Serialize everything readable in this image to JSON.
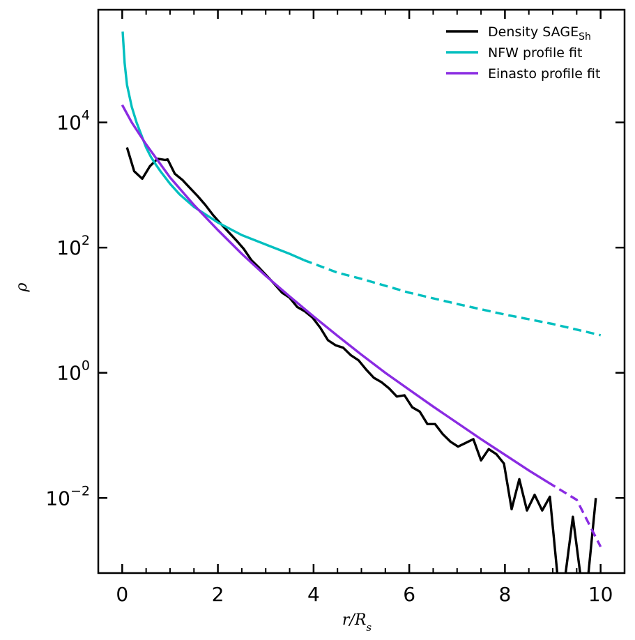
{
  "chart_data": {
    "type": "line",
    "xlabel": "r/R",
    "xlabel_sub": "s",
    "ylabel": "ρ",
    "xlim": [
      -0.5,
      10.5
    ],
    "ylim_log10": [
      -3.2,
      5.8
    ],
    "y_scale": "log",
    "x_ticks": [
      0,
      2,
      4,
      6,
      8,
      10
    ],
    "x_tick_labels": [
      "0",
      "2",
      "4",
      "6",
      "8",
      "10"
    ],
    "y_ticks_log10": [
      4,
      2,
      0,
      -2
    ],
    "y_tick_labels": [
      {
        "base": "10",
        "exp": "4"
      },
      {
        "base": "10",
        "exp": "2"
      },
      {
        "base": "10",
        "exp": "0"
      },
      {
        "base": "10",
        "exp": "−2"
      }
    ],
    "legend_position": "top-right",
    "legend": [
      {
        "label": "Density SAGE",
        "sub": "Sh",
        "color": "#000000"
      },
      {
        "label": "NFW profile fit",
        "sub": "",
        "color": "#00bfbf"
      },
      {
        "label": "Einasto profile fit",
        "sub": "",
        "color": "#8a2be2"
      }
    ],
    "series": [
      {
        "name": "Density SAGE_Sh",
        "color": "#000000",
        "x": [
          0.1,
          0.25,
          0.42,
          0.58,
          0.74,
          0.9,
          0.95,
          1.1,
          1.26,
          1.42,
          1.58,
          1.74,
          1.9,
          2.06,
          2.22,
          2.38,
          2.54,
          2.7,
          2.86,
          3.02,
          3.18,
          3.34,
          3.5,
          3.66,
          3.82,
          3.98,
          4.14,
          4.3,
          4.46,
          4.62,
          4.78,
          4.94,
          5.1,
          5.26,
          5.42,
          5.58,
          5.74,
          5.9,
          6.06,
          6.22,
          6.38,
          6.54,
          6.7,
          6.86,
          7.02,
          7.18,
          7.34,
          7.5,
          7.66,
          7.82,
          7.98,
          8.14,
          8.3,
          8.46,
          8.62,
          8.78,
          8.94,
          9.1,
          9.26,
          9.42,
          9.58,
          9.74,
          9.9
        ],
        "y_log10": [
          3.6,
          3.22,
          3.1,
          3.3,
          3.42,
          3.4,
          3.41,
          3.18,
          3.08,
          2.95,
          2.82,
          2.68,
          2.52,
          2.38,
          2.25,
          2.12,
          1.98,
          1.8,
          1.68,
          1.55,
          1.42,
          1.28,
          1.2,
          1.05,
          0.98,
          0.88,
          0.72,
          0.52,
          0.44,
          0.4,
          0.28,
          0.2,
          0.05,
          -0.08,
          -0.15,
          -0.25,
          -0.38,
          -0.36,
          -0.55,
          -0.62,
          -0.82,
          -0.82,
          -0.98,
          -1.1,
          -1.18,
          -1.12,
          -1.06,
          -1.4,
          -1.22,
          -1.3,
          -1.45,
          -2.18,
          -1.7,
          -2.2,
          -1.95,
          -2.2,
          -1.98,
          -3.5,
          -3.5,
          -2.3,
          -3.5,
          -3.5,
          -2.0
        ]
      },
      {
        "name": "NFW profile fit",
        "color": "#00bfbf",
        "solid_until_x": 3.8,
        "x": [
          0.01,
          0.05,
          0.1,
          0.2,
          0.3,
          0.4,
          0.5,
          0.6,
          0.7,
          0.8,
          1.0,
          1.2,
          1.5,
          2.0,
          2.5,
          3.0,
          3.5,
          3.8,
          4.5,
          5.0,
          6.0,
          7.0,
          8.0,
          9.0,
          10.0
        ],
        "y_log10": [
          5.45,
          4.95,
          4.6,
          4.25,
          4.0,
          3.8,
          3.6,
          3.45,
          3.33,
          3.22,
          3.02,
          2.85,
          2.65,
          2.4,
          2.2,
          2.05,
          1.9,
          1.8,
          1.6,
          1.5,
          1.28,
          1.1,
          0.93,
          0.78,
          0.6
        ]
      },
      {
        "name": "Einasto profile fit",
        "color": "#8a2be2",
        "solid_until_x": 8.9,
        "x": [
          0.0,
          0.2,
          0.5,
          1.0,
          1.5,
          2.0,
          2.5,
          3.0,
          3.5,
          4.0,
          4.5,
          5.0,
          5.5,
          6.0,
          6.5,
          7.0,
          7.5,
          8.0,
          8.5,
          8.9,
          9.5,
          10.0
        ],
        "y_log10": [
          4.28,
          4.0,
          3.65,
          3.12,
          2.68,
          2.28,
          1.9,
          1.55,
          1.22,
          0.9,
          0.59,
          0.29,
          0.0,
          -0.27,
          -0.54,
          -0.8,
          -1.06,
          -1.31,
          -1.56,
          -1.75,
          -2.03,
          -2.78
        ]
      }
    ]
  }
}
